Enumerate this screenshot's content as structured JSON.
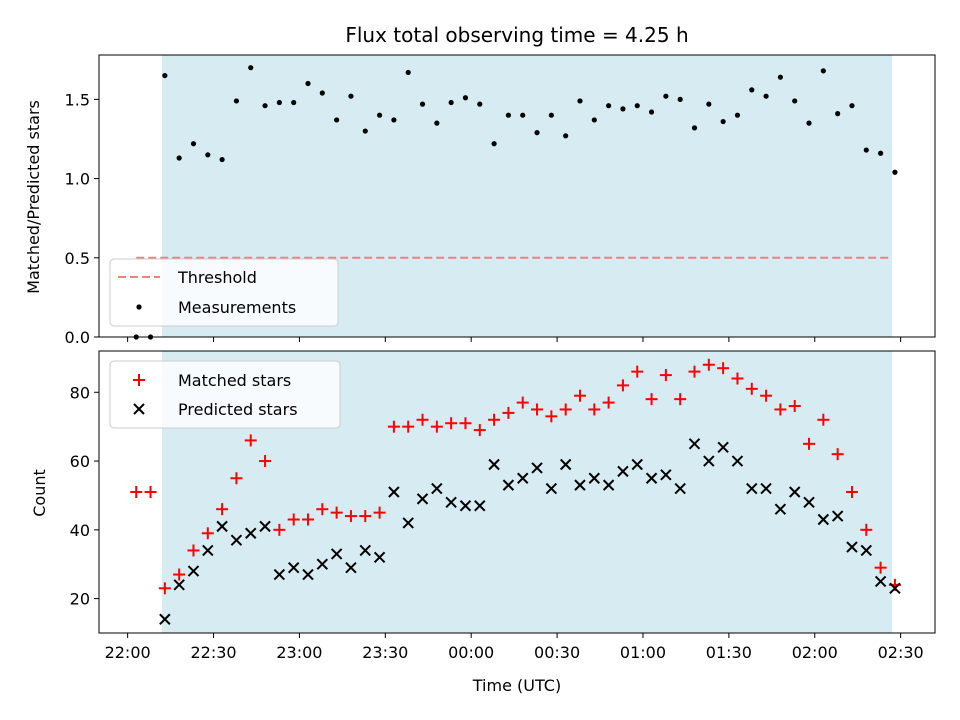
{
  "chart_data": [
    {
      "type": "scatter",
      "title": "Flux total observing time = 4.25 h",
      "ylabel": "Matched/Predicted stars",
      "xlabel": "",
      "ylim": [
        0,
        1.78
      ],
      "yticks": [
        "0.0",
        "0.5",
        "1.0",
        "1.5"
      ],
      "shaded_span_minutes": [
        12,
        267
      ],
      "shade_color": "#add8e6",
      "threshold": {
        "name": "Threshold",
        "value": 0.5,
        "x_range_minutes": [
          3,
          267
        ],
        "color": "#f08080"
      },
      "legend": {
        "placement": "lower-left",
        "entries": [
          "Threshold",
          "Measurements"
        ]
      },
      "series": [
        {
          "name": "Measurements",
          "color": "#000000",
          "x_minutes": [
            3,
            8,
            13,
            18,
            23,
            28,
            33,
            38,
            43,
            48,
            53,
            58,
            63,
            68,
            73,
            78,
            83,
            88,
            93,
            98,
            103,
            108,
            113,
            118,
            123,
            128,
            133,
            138,
            143,
            148,
            153,
            158,
            163,
            168,
            173,
            178,
            183,
            188,
            193,
            198,
            203,
            208,
            213,
            218,
            223,
            228,
            233,
            238,
            243,
            248,
            253,
            258,
            263,
            268
          ],
          "values": [
            0.0,
            0.0,
            1.65,
            1.13,
            1.22,
            1.15,
            1.12,
            1.49,
            1.7,
            1.46,
            1.48,
            1.48,
            1.6,
            1.54,
            1.37,
            1.52,
            1.3,
            1.4,
            1.37,
            1.67,
            1.47,
            1.35,
            1.48,
            1.51,
            1.47,
            1.22,
            1.4,
            1.4,
            1.29,
            1.4,
            1.27,
            1.49,
            1.37,
            1.46,
            1.44,
            1.46,
            1.42,
            1.52,
            1.5,
            1.32,
            1.47,
            1.36,
            1.4,
            1.56,
            1.52,
            1.64,
            1.49,
            1.35,
            1.68,
            1.41,
            1.46,
            1.18,
            1.16,
            1.04
          ]
        }
      ]
    },
    {
      "type": "scatter",
      "title": "",
      "xlabel": "Time (UTC)",
      "ylabel": "Count",
      "ylim": [
        10,
        92
      ],
      "yticks": [
        "20",
        "40",
        "60",
        "80"
      ],
      "xlim_minutes": [
        -10,
        282
      ],
      "xticks": [
        {
          "minutes": 0,
          "label": "22:00"
        },
        {
          "minutes": 30,
          "label": "22:30"
        },
        {
          "minutes": 60,
          "label": "23:00"
        },
        {
          "minutes": 90,
          "label": "23:30"
        },
        {
          "minutes": 120,
          "label": "00:00"
        },
        {
          "minutes": 150,
          "label": "00:30"
        },
        {
          "minutes": 180,
          "label": "01:00"
        },
        {
          "minutes": 210,
          "label": "01:30"
        },
        {
          "minutes": 240,
          "label": "02:00"
        },
        {
          "minutes": 270,
          "label": "02:30"
        }
      ],
      "shaded_span_minutes": [
        12,
        267
      ],
      "legend": {
        "placement": "upper-left",
        "entries": [
          "Matched stars",
          "Predicted stars"
        ]
      },
      "series": [
        {
          "name": "Matched stars",
          "marker": "plus",
          "color": "#ff0000",
          "x_minutes": [
            3,
            8,
            13,
            18,
            23,
            28,
            33,
            38,
            43,
            48,
            53,
            58,
            63,
            68,
            73,
            78,
            83,
            88,
            93,
            98,
            103,
            108,
            113,
            118,
            123,
            128,
            133,
            138,
            143,
            148,
            153,
            158,
            163,
            168,
            173,
            178,
            183,
            188,
            193,
            198,
            203,
            208,
            213,
            218,
            223,
            228,
            233,
            238,
            243,
            248,
            253,
            258,
            263,
            268
          ],
          "values": [
            51,
            51,
            23,
            27,
            34,
            39,
            46,
            55,
            66,
            60,
            40,
            43,
            43,
            46,
            45,
            44,
            44,
            45,
            70,
            70,
            72,
            70,
            71,
            71,
            69,
            72,
            74,
            77,
            75,
            73,
            75,
            79,
            75,
            77,
            82,
            86,
            78,
            85,
            78,
            86,
            88,
            87,
            84,
            81,
            79,
            75,
            76,
            65,
            72,
            62,
            51,
            40,
            29,
            24
          ]
        },
        {
          "name": "Predicted stars",
          "marker": "x",
          "color": "#000000",
          "x_minutes": [
            13,
            18,
            23,
            28,
            33,
            38,
            43,
            48,
            53,
            58,
            63,
            68,
            73,
            78,
            83,
            88,
            93,
            98,
            103,
            108,
            113,
            118,
            123,
            128,
            133,
            138,
            143,
            148,
            153,
            158,
            163,
            168,
            173,
            178,
            183,
            188,
            193,
            198,
            203,
            208,
            213,
            218,
            223,
            228,
            233,
            238,
            243,
            248,
            253,
            258,
            263,
            268
          ],
          "values": [
            14,
            24,
            28,
            34,
            41,
            37,
            39,
            41,
            27,
            29,
            27,
            30,
            33,
            29,
            34,
            32,
            51,
            42,
            49,
            52,
            48,
            47,
            47,
            59,
            53,
            55,
            58,
            52,
            59,
            53,
            55,
            53,
            57,
            59,
            55,
            56,
            52,
            65,
            60,
            64,
            60,
            52,
            52,
            46,
            51,
            48,
            43,
            44,
            35,
            34,
            25,
            23
          ]
        }
      ]
    }
  ]
}
